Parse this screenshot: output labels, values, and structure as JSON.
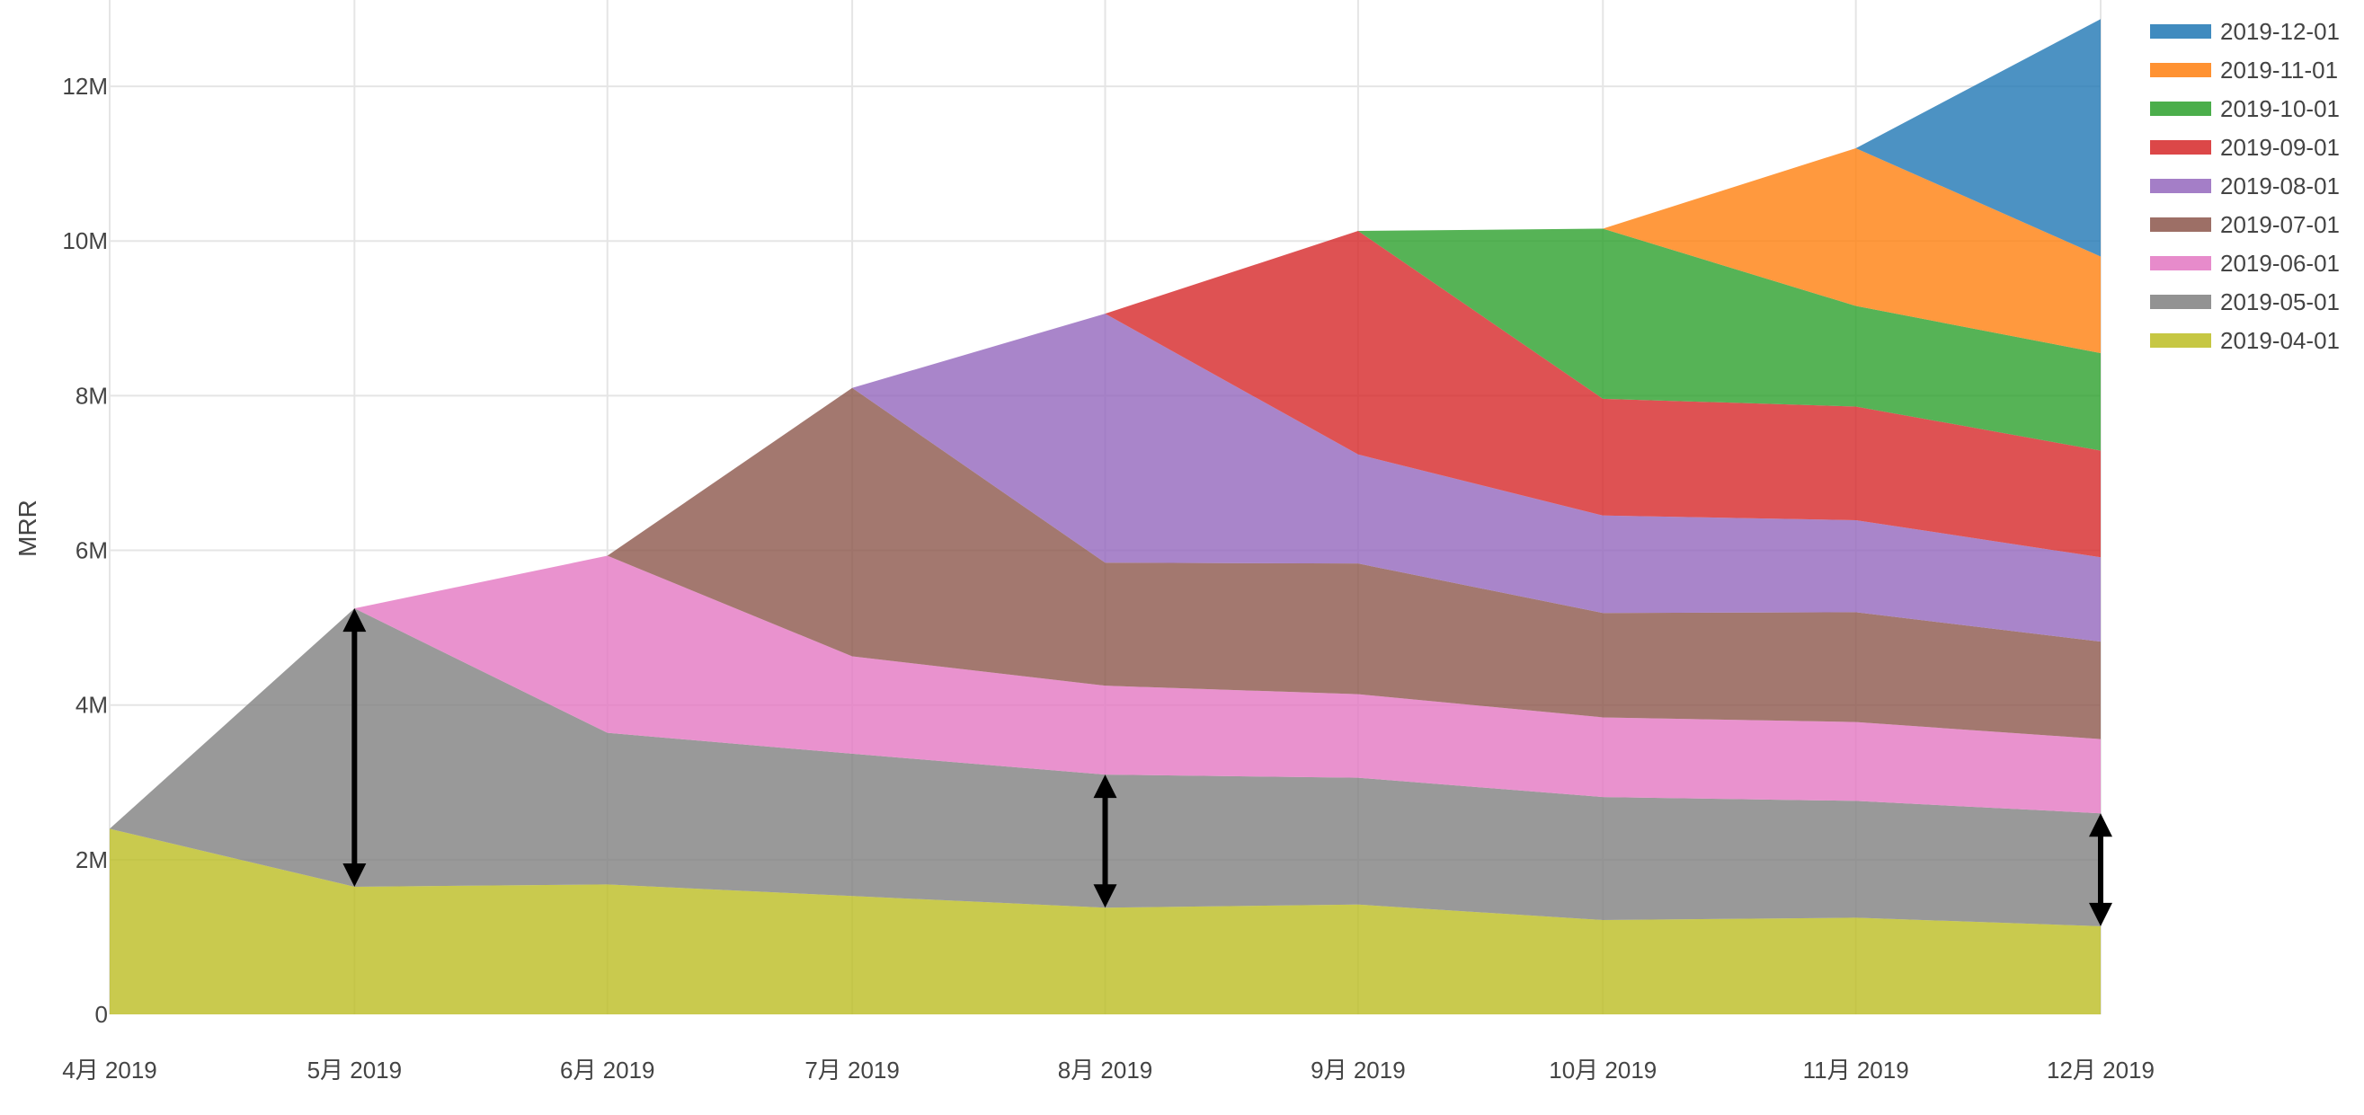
{
  "chart_data": {
    "type": "area",
    "stacked": true,
    "title": "",
    "xlabel": "",
    "ylabel": "MRR",
    "ylim": [
      0,
      13000000
    ],
    "y_ticks": [
      {
        "value": 0,
        "label": "0"
      },
      {
        "value": 2000000,
        "label": "2M"
      },
      {
        "value": 4000000,
        "label": "4M"
      },
      {
        "value": 6000000,
        "label": "6M"
      },
      {
        "value": 8000000,
        "label": "8M"
      },
      {
        "value": 10000000,
        "label": "10M"
      },
      {
        "value": 12000000,
        "label": "12M"
      }
    ],
    "categories": [
      "4月 2019",
      "5月 2019",
      "6月 2019",
      "7月 2019",
      "8月 2019",
      "9月 2019",
      "10月 2019",
      "11月 2019",
      "12月 2019"
    ],
    "x_months": [
      0,
      1,
      2,
      3,
      4,
      5,
      6,
      7,
      8
    ],
    "x_month_days": [
      30,
      31,
      30,
      31,
      31,
      30,
      31,
      30
    ],
    "grid": true,
    "legend_position": "top-right",
    "series": [
      {
        "name": "2019-04-01",
        "color": "#bcbd22",
        "start": 0,
        "values": [
          2400000,
          1650000,
          1680000,
          1530000,
          1380000,
          1420000,
          1220000,
          1250000,
          1140000
        ]
      },
      {
        "name": "2019-05-01",
        "color": "#7f7f7f",
        "start": 0,
        "values": [
          0,
          3600000,
          1960000,
          1840000,
          1720000,
          1640000,
          1590000,
          1510000,
          1460000
        ]
      },
      {
        "name": "2019-06-01",
        "color": "#e377c2",
        "start": 1,
        "values": [
          null,
          0,
          2290000,
          1260000,
          1150000,
          1080000,
          1030000,
          1020000,
          960000
        ]
      },
      {
        "name": "2019-07-01",
        "color": "#8c564b",
        "start": 2,
        "values": [
          null,
          null,
          0,
          3470000,
          1590000,
          1690000,
          1350000,
          1420000,
          1260000
        ]
      },
      {
        "name": "2019-08-01",
        "color": "#9467bd",
        "start": 3,
        "values": [
          null,
          null,
          null,
          0,
          3220000,
          1410000,
          1260000,
          1190000,
          1090000
        ]
      },
      {
        "name": "2019-09-01",
        "color": "#d62728",
        "start": 4,
        "values": [
          null,
          null,
          null,
          null,
          0,
          2890000,
          1510000,
          1470000,
          1380000
        ]
      },
      {
        "name": "2019-10-01",
        "color": "#2ca02c",
        "start": 5,
        "values": [
          null,
          null,
          null,
          null,
          null,
          0,
          2200000,
          1300000,
          1260000
        ]
      },
      {
        "name": "2019-11-01",
        "color": "#ff7f0e",
        "start": 6,
        "values": [
          null,
          null,
          null,
          null,
          null,
          null,
          0,
          2040000,
          1250000
        ]
      },
      {
        "name": "2019-12-01",
        "color": "#1f77b4",
        "start": 7,
        "values": [
          null,
          null,
          null,
          null,
          null,
          null,
          null,
          0,
          3070000
        ]
      }
    ],
    "legend_order": [
      "2019-12-01",
      "2019-11-01",
      "2019-10-01",
      "2019-09-01",
      "2019-08-01",
      "2019-07-01",
      "2019-06-01",
      "2019-05-01",
      "2019-04-01"
    ],
    "annotations": [
      {
        "type": "double-arrow",
        "category_index": 1,
        "from": 1650000,
        "to": 5250000,
        "color": "#000000"
      },
      {
        "type": "double-arrow",
        "category_index": 4,
        "from": 1380000,
        "to": 3100000,
        "color": "#000000"
      },
      {
        "type": "double-arrow",
        "category_index": 8,
        "from": 1140000,
        "to": 2600000,
        "color": "#000000"
      }
    ],
    "styles": {
      "area_opacity": 0.8,
      "grid_color": "#e5e5e5",
      "text_color": "#444444"
    }
  }
}
